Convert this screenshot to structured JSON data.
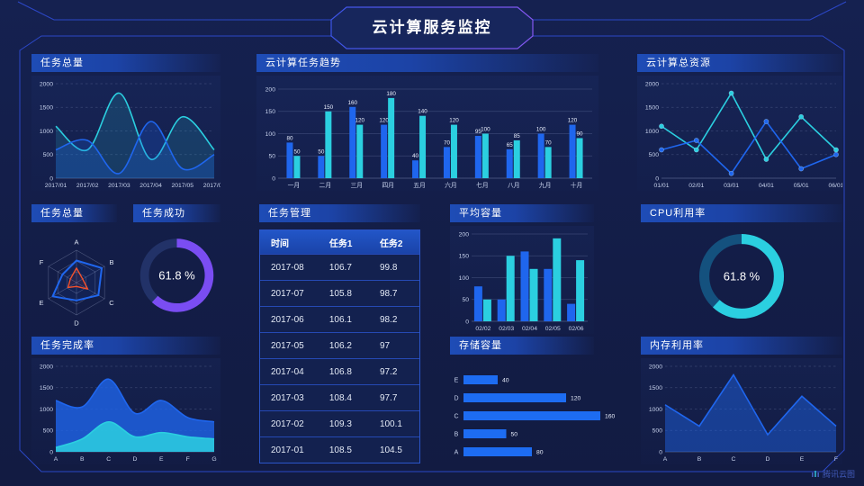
{
  "header": {
    "title": "云计算服务监控"
  },
  "watermark": {
    "label": "腾讯云图"
  },
  "colors": {
    "blue": "#1f66ee",
    "cyan": "#2bcfe0",
    "purple": "#7a4df2",
    "orange": "#f4512c",
    "bar_blue": "#1d6cf2",
    "track_purple": "#223268",
    "track_cyan": "#14517e",
    "axis": "#c7d2ec",
    "grid": "#8fa0c8",
    "frame": "#2f4cd4"
  },
  "table": {
    "panel_title": "任务管理",
    "columns": [
      "时间",
      "任务1",
      "任务2"
    ],
    "rows": [
      [
        "2017-08",
        "106.7",
        "99.8"
      ],
      [
        "2017-07",
        "105.8",
        "98.7"
      ],
      [
        "2017-06",
        "106.1",
        "98.2"
      ],
      [
        "2017-05",
        "106.2",
        "97"
      ],
      [
        "2017-04",
        "106.8",
        "97.2"
      ],
      [
        "2017-03",
        "108.4",
        "97.7"
      ],
      [
        "2017-02",
        "109.3",
        "100.1"
      ],
      [
        "2017-01",
        "108.5",
        "104.5"
      ]
    ]
  },
  "chart_data": [
    {
      "id": "tasks_total_trend",
      "panel_title": "任务总量",
      "type": "area",
      "smooth": true,
      "grid": "dashed",
      "x": [
        "2017/01",
        "2017/02",
        "2017/03",
        "2017/04",
        "2017/05",
        "2017/06"
      ],
      "ylim": [
        0,
        2000
      ],
      "yticks": [
        0,
        500,
        1000,
        1500,
        2000
      ],
      "series": [
        {
          "name": "cyan-series",
          "color": "cyan",
          "fill": 0.16,
          "values": [
            1100,
            600,
            1800,
            400,
            1300,
            600
          ]
        },
        {
          "name": "blue-series",
          "color": "blue",
          "fill": 0.24,
          "values": [
            600,
            800,
            100,
            1200,
            200,
            500
          ]
        }
      ]
    },
    {
      "id": "cloud_task_trend",
      "panel_title": "云计算任务趋势",
      "type": "bar",
      "value_labels": true,
      "categories": [
        "一月",
        "二月",
        "三月",
        "四月",
        "五月",
        "六月",
        "七月",
        "八月",
        "九月",
        "十月"
      ],
      "ylim": [
        0,
        200
      ],
      "yticks": [
        0,
        50,
        100,
        150,
        200
      ],
      "series": [
        {
          "name": "任务1",
          "color": "blue",
          "values": [
            80,
            50,
            160,
            120,
            40,
            70,
            95,
            65,
            100,
            120
          ]
        },
        {
          "name": "任务2",
          "color": "cyan",
          "values": [
            50,
            150,
            120,
            180,
            140,
            120,
            100,
            85,
            70,
            90
          ]
        }
      ]
    },
    {
      "id": "cloud_total_resources",
      "panel_title": "云计算总资源",
      "type": "line",
      "markers": true,
      "grid": "dashed",
      "x": [
        "01/01",
        "02/01",
        "03/01",
        "04/01",
        "05/01",
        "06/01"
      ],
      "ylim": [
        0,
        2000
      ],
      "yticks": [
        0,
        500,
        1000,
        1500,
        2000
      ],
      "series": [
        {
          "name": "cyan-series",
          "color": "cyan",
          "values": [
            1100,
            600,
            1800,
            400,
            1300,
            600
          ]
        },
        {
          "name": "blue-series",
          "color": "blue",
          "values": [
            600,
            800,
            100,
            1200,
            200,
            500
          ]
        }
      ]
    },
    {
      "id": "task_total_radar",
      "panel_title": "任务总量",
      "type": "radar",
      "levels": 3,
      "axes": [
        "A",
        "B",
        "C",
        "D",
        "E",
        "F"
      ],
      "series": [
        {
          "name": "radar-blue",
          "color": "blue",
          "values": [
            0.68,
            0.9,
            0.78,
            0.55,
            0.85,
            0.5
          ]
        },
        {
          "name": "radar-orange",
          "color": "orange",
          "values": [
            0.45,
            0.22,
            0.4,
            0.12,
            0.3,
            0.22
          ]
        }
      ]
    },
    {
      "id": "task_success_donut",
      "panel_title": "任务成功",
      "type": "donut",
      "percent": 61.8,
      "label": "61.8 %",
      "color": "purple",
      "track": "track_purple"
    },
    {
      "id": "avg_capacity",
      "panel_title": "平均容量",
      "type": "bar",
      "value_labels": false,
      "categories": [
        "02/02",
        "02/03",
        "02/04",
        "02/05",
        "02/06"
      ],
      "ylim": [
        0,
        200
      ],
      "yticks": [
        0,
        50,
        100,
        150,
        200
      ],
      "series": [
        {
          "name": "blue-series",
          "color": "blue",
          "values": [
            80,
            50,
            160,
            120,
            40
          ]
        },
        {
          "name": "cyan-series",
          "color": "cyan",
          "values": [
            50,
            150,
            120,
            190,
            140
          ]
        }
      ]
    },
    {
      "id": "cpu_usage_donut",
      "panel_title": "CPU利用率",
      "type": "donut",
      "percent": 61.8,
      "label": "61.8 %",
      "color": "cyan",
      "track": "track_cyan"
    },
    {
      "id": "task_completion",
      "panel_title": "任务完成率",
      "type": "area",
      "smooth": true,
      "grid": "dashed",
      "x": [
        "A",
        "B",
        "C",
        "D",
        "E",
        "F",
        "G"
      ],
      "ylim": [
        0,
        2000
      ],
      "yticks": [
        0,
        500,
        1000,
        1500,
        2000
      ],
      "series": [
        {
          "name": "area-blue",
          "color": "blue",
          "fill": 0.78,
          "values": [
            1200,
            1050,
            1700,
            900,
            1200,
            800,
            700
          ]
        },
        {
          "name": "area-cyan",
          "color": "cyan",
          "fill": 0.85,
          "values": [
            100,
            300,
            700,
            350,
            450,
            350,
            300
          ]
        }
      ]
    },
    {
      "id": "storage_capacity",
      "panel_title": "存储容量",
      "type": "hbar",
      "xmax": 160,
      "categories": [
        "E",
        "D",
        "C",
        "B",
        "A"
      ],
      "values": [
        40,
        120,
        160,
        50,
        80
      ]
    },
    {
      "id": "memory_usage",
      "panel_title": "内存利用率",
      "type": "area",
      "smooth": false,
      "grid": "dashed",
      "x": [
        "A",
        "B",
        "C",
        "D",
        "E",
        "F"
      ],
      "ylim": [
        0,
        2000
      ],
      "yticks": [
        0,
        500,
        1000,
        1500,
        2000
      ],
      "series": [
        {
          "name": "line-blue",
          "color": "blue",
          "fill": 0.45,
          "values": [
            1100,
            600,
            1800,
            400,
            1300,
            600
          ]
        }
      ]
    }
  ]
}
